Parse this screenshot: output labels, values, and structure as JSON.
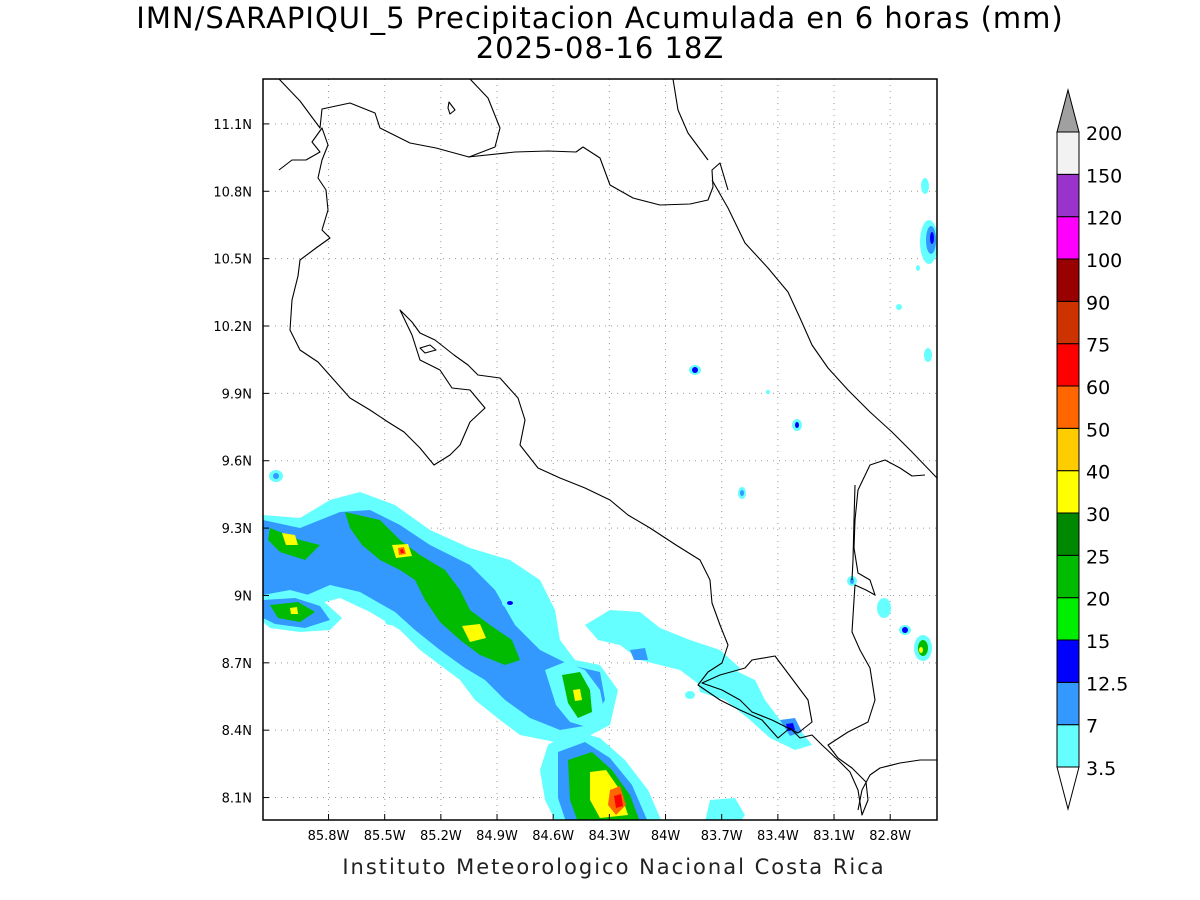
{
  "title": {
    "line1": "IMN/SARAPIQUI_5 Precipitacion Acumulada en 6 horas (mm)",
    "line2": "2025-08-16 18Z"
  },
  "credit": "Instituto Meteorologico Nacional Costa Rica",
  "map": {
    "lon_range": [
      -86.15,
      -82.55
    ],
    "lat_range": [
      8.0,
      11.3
    ],
    "lon_ticks": [
      {
        "value": -85.8,
        "label": "85.8W"
      },
      {
        "value": -85.5,
        "label": "85.5W"
      },
      {
        "value": -85.2,
        "label": "85.2W"
      },
      {
        "value": -84.9,
        "label": "84.9W"
      },
      {
        "value": -84.6,
        "label": "84.6W"
      },
      {
        "value": -84.3,
        "label": "84.3W"
      },
      {
        "value": -84.0,
        "label": "84W"
      },
      {
        "value": -83.7,
        "label": "83.7W"
      },
      {
        "value": -83.4,
        "label": "83.4W"
      },
      {
        "value": -83.1,
        "label": "83.1W"
      },
      {
        "value": -82.8,
        "label": "82.8W"
      }
    ],
    "lat_ticks": [
      {
        "value": 8.1,
        "label": "8.1N"
      },
      {
        "value": 8.4,
        "label": "8.4N"
      },
      {
        "value": 8.7,
        "label": "8.7N"
      },
      {
        "value": 9.0,
        "label": "9N"
      },
      {
        "value": 9.3,
        "label": "9.3N"
      },
      {
        "value": 9.6,
        "label": "9.6N"
      },
      {
        "value": 9.9,
        "label": "9.9N"
      },
      {
        "value": 10.2,
        "label": "10.2N"
      },
      {
        "value": 10.5,
        "label": "10.5N"
      },
      {
        "value": 10.8,
        "label": "10.8N"
      },
      {
        "value": 11.1,
        "label": "11.1N"
      }
    ],
    "grid": "dotted"
  },
  "colorbar": {
    "labels": [
      "3.5",
      "7",
      "12.5",
      "15",
      "20",
      "25",
      "30",
      "40",
      "50",
      "60",
      "75",
      "90",
      "100",
      "120",
      "150",
      "200"
    ],
    "colors": [
      "#66ffff",
      "#3399ff",
      "#0000ff",
      "#00ee00",
      "#00bb00",
      "#008800",
      "#ffff00",
      "#ffcc00",
      "#ff6600",
      "#ff0000",
      "#cc3300",
      "#990000",
      "#ff00ff",
      "#9933cc",
      "#f2f2f2"
    ],
    "under_color": "#ffffff",
    "over_color": "#a0a0a0"
  }
}
